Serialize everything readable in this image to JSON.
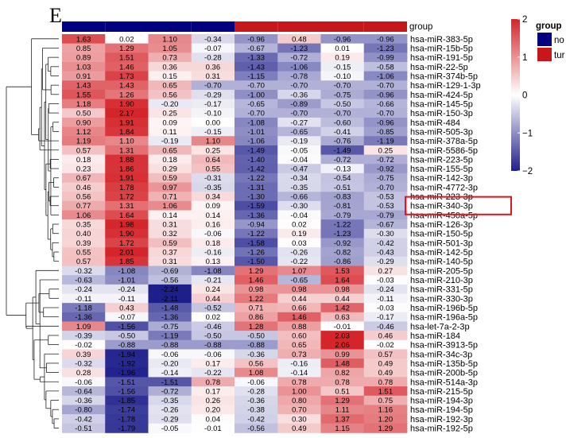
{
  "panel_label": "E",
  "group_label": "group",
  "legend": {
    "title": "group",
    "items": [
      {
        "label": "no",
        "color": "#000080"
      },
      {
        "label": "tur",
        "color": "#c7171d"
      }
    ],
    "ticks": [
      "2",
      "1",
      "0",
      "−1",
      "−2"
    ]
  },
  "colors": {
    "low": "#1f1f8c",
    "mid": "#ffffff",
    "high": "#d4252a",
    "highlight": "#e0141a"
  },
  "chart_data": {
    "type": "heatmap",
    "title": "",
    "xlabel": "",
    "ylabel": "",
    "color_scale": {
      "min": -2,
      "max": 2,
      "ticks": [
        2,
        1,
        0,
        -1,
        -2
      ]
    },
    "columns": 8,
    "column_groups": [
      "no",
      "no",
      "no",
      "no",
      "tur",
      "tur",
      "tur",
      "tur"
    ],
    "highlighted_rows": [
      "hsa-miR-340-3p"
    ],
    "rows": [
      {
        "label": "hsa-miR-383-5p",
        "values": [
          1.63,
          0.02,
          1.1,
          -0.34,
          -0.96,
          0.48,
          -0.96,
          -0.96
        ]
      },
      {
        "label": "hsa-miR-15b-5p",
        "values": [
          0.85,
          1.29,
          1.05,
          -0.07,
          -0.67,
          -1.23,
          0.01,
          -1.23
        ]
      },
      {
        "label": "hsa-miR-191-5p",
        "values": [
          0.89,
          1.51,
          0.73,
          -0.28,
          -1.33,
          -0.72,
          0.19,
          -0.99
        ]
      },
      {
        "label": "hsa-miR-22-5p",
        "values": [
          1.03,
          1.46,
          0.36,
          0.36,
          -1.43,
          -1.06,
          -0.15,
          -0.58
        ]
      },
      {
        "label": "hsa-miR-374b-5p",
        "values": [
          0.91,
          1.73,
          0.15,
          0.31,
          -1.15,
          -0.78,
          -0.1,
          -1.06
        ]
      },
      {
        "label": "hsa-miR-129-1-3p",
        "values": [
          1.43,
          1.43,
          0.65,
          -0.7,
          -0.7,
          -0.7,
          -0.7,
          -0.7
        ]
      },
      {
        "label": "hsa-miR-424-5p",
        "values": [
          1.55,
          1.26,
          0.56,
          -0.29,
          -1.0,
          -0.36,
          -0.75,
          -0.96
        ]
      },
      {
        "label": "hsa-miR-145-5p",
        "values": [
          1.18,
          1.9,
          -0.2,
          -0.17,
          -0.65,
          -0.89,
          -0.5,
          -0.66
        ]
      },
      {
        "label": "hsa-miR-150-3p",
        "values": [
          0.5,
          2.17,
          0.25,
          -0.1,
          -0.7,
          -0.7,
          -0.7,
          -0.7
        ]
      },
      {
        "label": "hsa-miR-484",
        "values": [
          0.9,
          1.91,
          0.09,
          0.0,
          -1.08,
          -0.27,
          -0.6,
          -0.96
        ]
      },
      {
        "label": "hsa-miR-505-3p",
        "values": [
          1.12,
          1.84,
          0.11,
          -0.15,
          -1.01,
          -0.65,
          -0.41,
          -0.85
        ]
      },
      {
        "label": "hsa-miR-378a-5p",
        "values": [
          1.19,
          1.1,
          -0.19,
          1.1,
          -1.06,
          -0.19,
          -0.76,
          -1.19
        ]
      },
      {
        "label": "hsa-miR-5586-5p",
        "values": [
          0.57,
          1.31,
          0.65,
          0.25,
          -1.49,
          -0.05,
          -1.49,
          0.25
        ]
      },
      {
        "label": "hsa-miR-223-5p",
        "values": [
          0.18,
          1.88,
          0.18,
          0.64,
          -1.4,
          -0.04,
          -0.72,
          -0.72
        ]
      },
      {
        "label": "hsa-miR-155-5p",
        "values": [
          0.23,
          1.86,
          0.29,
          0.55,
          -1.42,
          -0.47,
          -0.13,
          -0.92
        ]
      },
      {
        "label": "hsa-miR-142-3p",
        "values": [
          0.67,
          1.91,
          0.59,
          -0.31,
          -1.22,
          -0.34,
          -0.54,
          -0.75
        ]
      },
      {
        "label": "hsa-miR-4772-3p",
        "values": [
          0.46,
          1.78,
          0.97,
          -0.35,
          -1.31,
          -0.35,
          -0.51,
          -0.7
        ]
      },
      {
        "label": "hsa-miR-223-3p",
        "values": [
          0.56,
          1.72,
          0.71,
          0.34,
          -1.3,
          -0.66,
          -0.83,
          -0.53
        ]
      },
      {
        "label": "hsa-miR-340-3p",
        "values": [
          0.77,
          1.31,
          1.06,
          0.09,
          -1.59,
          -0.3,
          -0.81,
          -0.53
        ]
      },
      {
        "label": "hsa-miR-450a-5p",
        "values": [
          1.06,
          1.64,
          0.14,
          0.14,
          -1.36,
          -0.04,
          -0.79,
          -0.79
        ]
      },
      {
        "label": "hsa-miR-126-3p",
        "values": [
          0.35,
          1.98,
          0.31,
          0.16,
          -0.94,
          0.02,
          -1.22,
          -0.67
        ]
      },
      {
        "label": "hsa-miR-150-5p",
        "values": [
          0.4,
          1.9,
          0.32,
          -0.06,
          -1.22,
          0.19,
          -1.23,
          -0.3
        ]
      },
      {
        "label": "hsa-miR-501-3p",
        "values": [
          0.39,
          1.72,
          0.59,
          0.18,
          -1.58,
          0.03,
          -0.92,
          -0.42
        ]
      },
      {
        "label": "hsa-miR-142-5p",
        "values": [
          0.55,
          2.01,
          0.37,
          -0.16,
          -1.26,
          -0.26,
          -0.82,
          -0.43
        ]
      },
      {
        "label": "hsa-miR-140-5p",
        "values": [
          0.57,
          1.85,
          0.31,
          0.13,
          -1.5,
          -0.22,
          -0.86,
          -0.29
        ]
      },
      {
        "label": "hsa-miR-205-5p",
        "values": [
          -0.32,
          -1.08,
          -0.69,
          -1.08,
          1.29,
          1.07,
          1.53,
          0.27
        ]
      },
      {
        "label": "hsa-miR-210-3p",
        "values": [
          -0.63,
          -1.01,
          -0.56,
          -0.21,
          1.46,
          -0.65,
          1.64,
          -0.03
        ]
      },
      {
        "label": "hsa-miR-331-5p",
        "values": [
          -0.24,
          -0.24,
          -2.24,
          0.24,
          0.98,
          0.98,
          0.98,
          -0.24
        ]
      },
      {
        "label": "hsa-miR-330-3p",
        "values": [
          -0.11,
          -0.11,
          -2.11,
          0.44,
          1.22,
          0.44,
          0.44,
          -0.11
        ]
      },
      {
        "label": "hsa-miR-196b-5p",
        "values": [
          -1.18,
          0.43,
          -1.48,
          -0.52,
          0.71,
          0.66,
          1.42,
          -0.03
        ]
      },
      {
        "label": "hsa-miR-196a-5p",
        "values": [
          -1.36,
          -0.07,
          -1.36,
          0.02,
          0.86,
          1.46,
          0.63,
          -0.17
        ]
      },
      {
        "label": "hsa-let-7a-2-3p",
        "values": [
          1.09,
          -1.56,
          -0.75,
          -0.46,
          1.28,
          0.88,
          -0.01,
          -0.46
        ]
      },
      {
        "label": "hsa-miR-184",
        "values": [
          -0.39,
          -0.5,
          -1.19,
          -0.5,
          -0.5,
          0.6,
          2.03,
          0.46
        ]
      },
      {
        "label": "hsa-miR-3913-5p",
        "values": [
          -0.02,
          -0.88,
          -0.88,
          -0.88,
          -0.88,
          0.65,
          2.06,
          -0.02
        ]
      },
      {
        "label": "hsa-miR-34c-3p",
        "values": [
          0.39,
          -1.94,
          -0.06,
          -0.06,
          -0.36,
          0.73,
          0.99,
          0.57
        ]
      },
      {
        "label": "hsa-miR-135b-5p",
        "values": [
          -0.32,
          -1.92,
          -0.2,
          0.17,
          0.56,
          -0.16,
          1.48,
          0.49
        ]
      },
      {
        "label": "hsa-miR-200b-5p",
        "values": [
          0.28,
          -1.96,
          -0.14,
          -0.22,
          1.08,
          -0.14,
          0.82,
          0.49
        ]
      },
      {
        "label": "hsa-miR-514a-3p",
        "values": [
          -0.06,
          -1.51,
          -1.51,
          0.78,
          -0.06,
          0.78,
          0.78,
          0.78
        ]
      },
      {
        "label": "hsa-miR-215-5p",
        "values": [
          -0.64,
          -1.56,
          -0.72,
          0.17,
          -0.28,
          1.0,
          0.51,
          1.51
        ]
      },
      {
        "label": "hsa-miR-194-3p",
        "values": [
          -0.36,
          -1.85,
          -0.35,
          0.26,
          -0.36,
          0.8,
          1.29,
          0.75
        ]
      },
      {
        "label": "hsa-miR-194-5p",
        "values": [
          -0.8,
          -1.74,
          -0.26,
          0.2,
          -0.38,
          0.7,
          1.11,
          1.16
        ]
      },
      {
        "label": "hsa-miR-192-3p",
        "values": [
          -0.42,
          -1.78,
          -0.29,
          0.04,
          -0.42,
          0.3,
          1.37,
          1.2
        ]
      },
      {
        "label": "hsa-miR-192-5p",
        "values": [
          -0.51,
          -1.79,
          -0.05,
          -0.01,
          -0.56,
          0.49,
          1.15,
          1.29
        ]
      }
    ]
  }
}
